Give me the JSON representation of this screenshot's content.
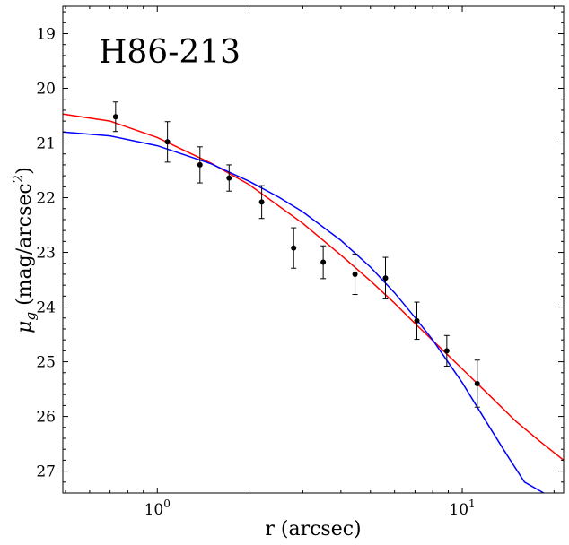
{
  "chart_data": {
    "type": "scatter",
    "title": "H86-213",
    "xlabel": "r (arcsec)",
    "ylabel_prefix": "μ",
    "ylabel_subscript": "g",
    "ylabel_suffix": " (mag/arcsec",
    "ylabel_superscript": "2",
    "ylabel_close": ")",
    "xscale": "log",
    "xlim": [
      0.49,
      21.5
    ],
    "ylim": [
      27.4,
      18.5
    ],
    "y_inverted": true,
    "xticks": [
      {
        "value": 1,
        "base": "10",
        "exp": "0"
      },
      {
        "value": 10,
        "base": "10",
        "exp": "1"
      }
    ],
    "yticks": [
      19,
      20,
      21,
      22,
      23,
      24,
      25,
      26,
      27
    ],
    "grid": false,
    "points": {
      "color": "#000000",
      "x": [
        0.73,
        1.08,
        1.38,
        1.72,
        2.2,
        2.8,
        3.5,
        4.45,
        5.6,
        7.1,
        8.9,
        11.2
      ],
      "y": [
        20.52,
        20.98,
        21.4,
        21.64,
        22.08,
        22.92,
        23.18,
        23.4,
        23.47,
        24.25,
        24.8,
        25.4
      ],
      "yerr": [
        0.27,
        0.37,
        0.33,
        0.24,
        0.3,
        0.37,
        0.3,
        0.37,
        0.38,
        0.34,
        0.28,
        0.43
      ]
    },
    "series": [
      {
        "color": "#ff0000",
        "x": [
          0.49,
          0.7,
          1.0,
          1.5,
          2.0,
          3.0,
          4.0,
          5.0,
          6.0,
          7.0,
          8.0,
          10.0,
          12.0,
          15.0,
          18.0,
          21.5
        ],
        "y": [
          20.47,
          20.6,
          20.9,
          21.37,
          21.76,
          22.47,
          23.05,
          23.52,
          23.93,
          24.3,
          24.61,
          25.13,
          25.56,
          26.09,
          26.46,
          26.8
        ]
      },
      {
        "color": "#0000ff",
        "x": [
          0.49,
          0.7,
          1.0,
          1.5,
          2.0,
          2.5,
          3.0,
          4.0,
          5.0,
          6.0,
          7.0,
          8.0,
          10.0,
          12.0,
          14.0,
          16.0,
          18.5
        ],
        "y": [
          20.8,
          20.87,
          21.05,
          21.38,
          21.7,
          21.99,
          22.26,
          22.78,
          23.27,
          23.74,
          24.19,
          24.6,
          25.38,
          26.1,
          26.7,
          27.2,
          27.4
        ]
      }
    ]
  }
}
